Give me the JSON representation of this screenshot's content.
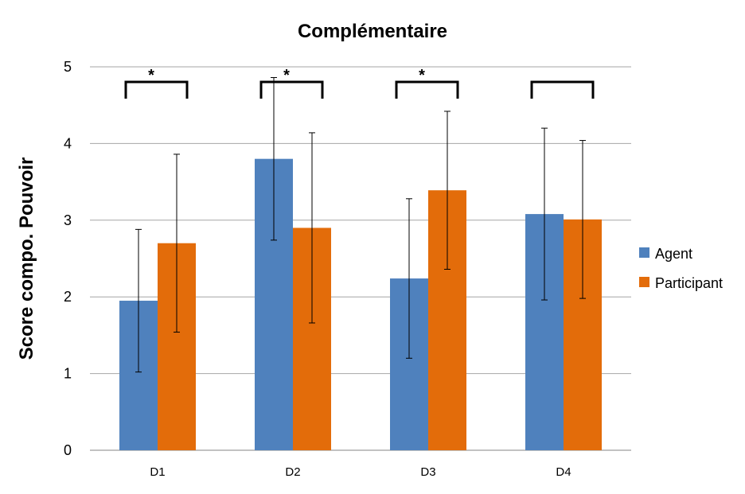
{
  "chart_data": {
    "type": "bar",
    "title": "Complémentaire",
    "xlabel": "",
    "ylabel": "Score compo. Pouvoir",
    "ylim": [
      0,
      5
    ],
    "yticks": [
      "0",
      "1",
      "2",
      "3",
      "4",
      "5"
    ],
    "categories": [
      "D1",
      "D2",
      "D3",
      "D4"
    ],
    "series": [
      {
        "name": "Agent",
        "color": "#4F81BD",
        "values": [
          1.95,
          3.8,
          2.24,
          3.08
        ],
        "error": [
          0.93,
          1.06,
          1.04,
          1.12
        ]
      },
      {
        "name": "Participant",
        "color": "#E36C0A",
        "values": [
          2.7,
          2.9,
          3.39,
          3.01
        ],
        "error": [
          1.16,
          1.24,
          1.03,
          1.03
        ]
      }
    ],
    "significance": [
      "*",
      "*",
      "*",
      ""
    ],
    "grid": true,
    "legend_position": "right"
  }
}
